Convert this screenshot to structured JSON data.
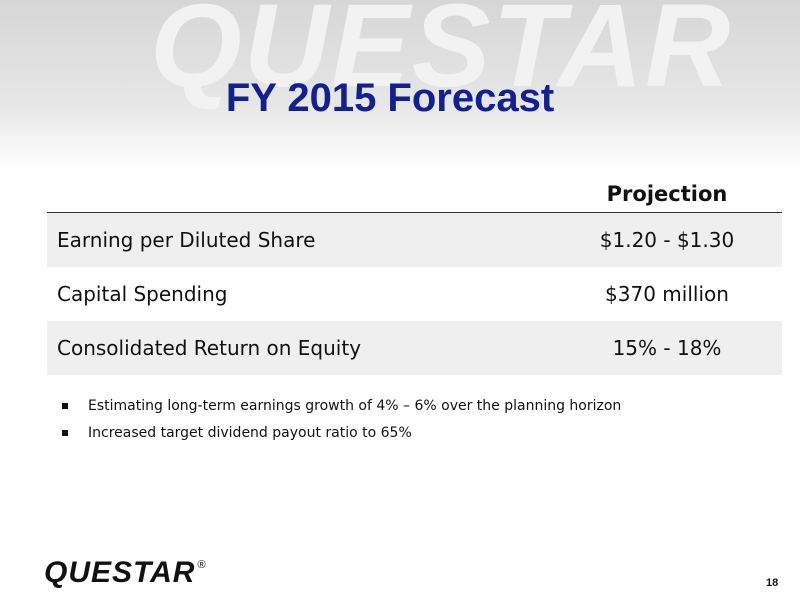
{
  "header": {
    "title": "FY 2015 Forecast",
    "watermark": "QUESTAR"
  },
  "table": {
    "column_header": "Projection",
    "rows": [
      [
        "Earning per Diluted Share",
        "$1.20 - $1.30"
      ],
      [
        "Capital Spending",
        "$370 million"
      ],
      [
        "Consolidated Return on Equity",
        "15% - 18%"
      ]
    ]
  },
  "bullets": [
    "Estimating long-term earnings growth of 4% – 6% over the planning horizon",
    "Increased target dividend payout ratio to 65%"
  ],
  "footer": {
    "logo": "QUESTAR",
    "logo_mark": "®",
    "page_number": "18"
  }
}
